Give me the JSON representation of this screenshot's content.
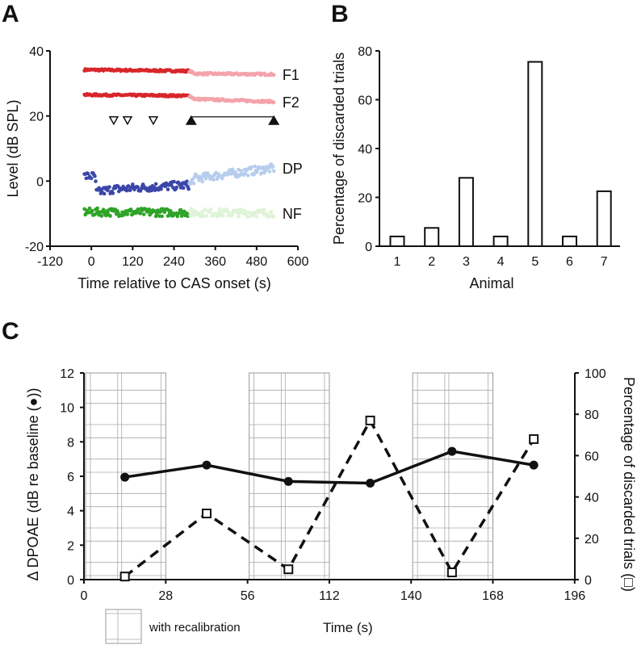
{
  "chart_data": [
    {
      "panel": "A",
      "type": "scatter",
      "xlabel": "Time relative to CAS onset (s)",
      "ylabel": "Level (dB SPL)",
      "xlim": [
        -120,
        600
      ],
      "ylim": [
        -20,
        40
      ],
      "xticks": [
        "-120",
        "0",
        "120",
        "240",
        "360",
        "480",
        "600"
      ],
      "yticks": [
        "-20",
        "0",
        "20",
        "40"
      ],
      "cas_onset_s": 285,
      "series": [
        {
          "name": "F1",
          "color_before": "#d8262b",
          "color_after": "#f4a3ab",
          "trend": [
            [
              -20,
              34.2
            ],
            [
              285,
              33.8
            ],
            [
              300,
              33.0
            ],
            [
              530,
              32.8
            ]
          ],
          "noise": 0.3
        },
        {
          "name": "F2",
          "color_before": "#d8262b",
          "color_after": "#f4a3ab",
          "trend": [
            [
              -20,
              26.5
            ],
            [
              285,
              26.2
            ],
            [
              300,
              25.2
            ],
            [
              530,
              24.4
            ]
          ],
          "noise": 0.3
        },
        {
          "name": "DP",
          "color_before": "#3b47a8",
          "color_after": "#b7cdee",
          "trend": [
            [
              -20,
              1.5
            ],
            [
              10,
              1.5
            ],
            [
              15,
              -3.5
            ],
            [
              60,
              -2.5
            ],
            [
              285,
              -1.2
            ],
            [
              300,
              0.8
            ],
            [
              420,
              2.5
            ],
            [
              530,
              4.0
            ]
          ],
          "noise": 1.3
        },
        {
          "name": "NF",
          "color_before": "#2fa327",
          "color_after": "#dff3d8",
          "trend": [
            [
              -20,
              -9.5
            ],
            [
              530,
              -9.8
            ]
          ],
          "noise": 1.2
        }
      ],
      "open_triangles_s": [
        65,
        105,
        180
      ],
      "filled_triangles_s": [
        290,
        530
      ],
      "triangle_level": 18.5
    },
    {
      "panel": "B",
      "type": "bar",
      "xlabel": "Animal",
      "ylabel": "Percentage of discarded trials",
      "categories": [
        "1",
        "2",
        "3",
        "4",
        "5",
        "6",
        "7"
      ],
      "values": [
        4,
        7.5,
        28,
        4,
        75.5,
        4,
        22.5
      ],
      "ylim": [
        0,
        80
      ],
      "yticks": [
        "0",
        "20",
        "40",
        "60",
        "80"
      ]
    },
    {
      "panel": "C",
      "type": "line",
      "xlabel": "Time (s)",
      "ylabel_left": "Δ DPOAE (dB re baseline (●))",
      "ylabel_right": "Percentage of discarded trials (□)",
      "xticks": [
        "0",
        "28",
        "56",
        "112",
        "140",
        "168",
        "196"
      ],
      "ylim_left": [
        0,
        12
      ],
      "ylim_right": [
        0,
        100
      ],
      "yticks_left": [
        "0",
        "2",
        "4",
        "6",
        "8",
        "10",
        "12"
      ],
      "yticks_right": [
        "0",
        "20",
        "40",
        "60",
        "80",
        "100"
      ],
      "recalibration_intervals": [
        [
          0,
          1
        ],
        [
          2,
          3
        ],
        [
          4,
          5
        ]
      ],
      "legend_label": "with recalibration",
      "series": [
        {
          "name": "Δ DPOAE",
          "axis": "left",
          "style": "solid-filled-circle",
          "x_index": [
            0.5,
            1.5,
            2.5,
            3.5,
            4.5,
            5.5
          ],
          "values": [
            5.95,
            6.65,
            5.7,
            5.6,
            7.45,
            6.65
          ]
        },
        {
          "name": "Percentage of discarded trials",
          "axis": "right",
          "style": "dashed-open-square",
          "x_index": [
            0.5,
            1.5,
            2.5,
            3.5,
            4.5,
            5.5
          ],
          "values": [
            1.5,
            32,
            5,
            77,
            3.5,
            68
          ]
        }
      ]
    }
  ],
  "panel_labels": [
    "A",
    "B",
    "C"
  ]
}
